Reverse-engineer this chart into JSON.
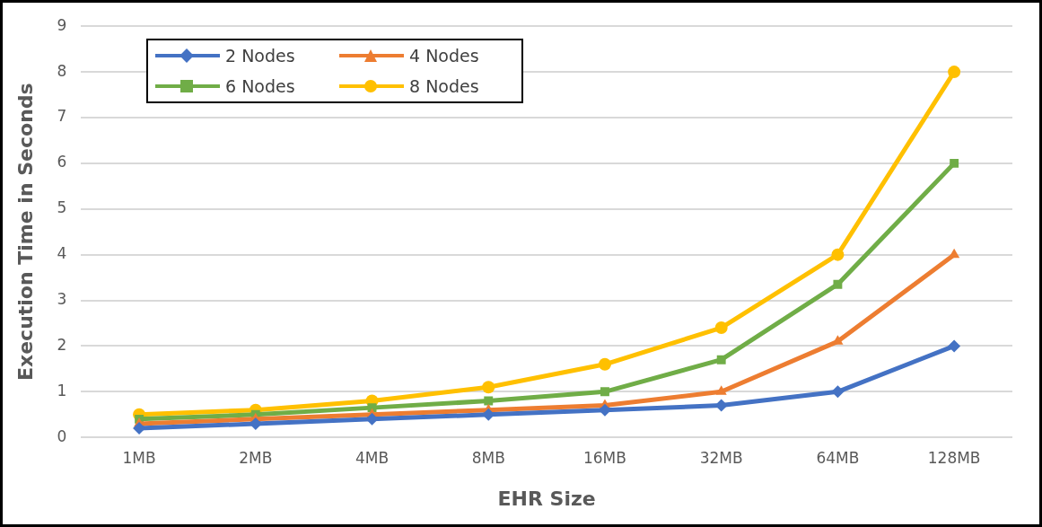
{
  "chart_data": {
    "type": "line",
    "xlabel": "EHR Size",
    "ylabel": "Execution Time in Seconds",
    "categories": [
      "1MB",
      "2MB",
      "4MB",
      "8MB",
      "16MB",
      "32MB",
      "64MB",
      "128MB"
    ],
    "series": [
      {
        "name": "2 Nodes",
        "color": "#4472c4",
        "marker": "diamond",
        "values": [
          0.2,
          0.3,
          0.4,
          0.5,
          0.6,
          0.7,
          1,
          2
        ]
      },
      {
        "name": "4 Nodes",
        "color": "#ed7d31",
        "marker": "triangle",
        "values": [
          0.3,
          0.4,
          0.5,
          0.6,
          0.7,
          1,
          2.1,
          4
        ]
      },
      {
        "name": "6 Nodes",
        "color": "#70ad47",
        "marker": "square",
        "values": [
          0.4,
          0.5,
          0.65,
          0.8,
          1,
          1.7,
          3.35,
          6
        ]
      },
      {
        "name": "8 Nodes",
        "color": "#ffc000",
        "marker": "circle",
        "values": [
          0.5,
          0.6,
          0.8,
          1.1,
          1.6,
          2.4,
          4,
          8
        ]
      }
    ],
    "ylim": [
      0,
      9
    ],
    "yticks": [
      0,
      1,
      2,
      3,
      4,
      5,
      6,
      7,
      8,
      9
    ],
    "grid": "y",
    "legend": "top left",
    "line_style": "solid"
  }
}
